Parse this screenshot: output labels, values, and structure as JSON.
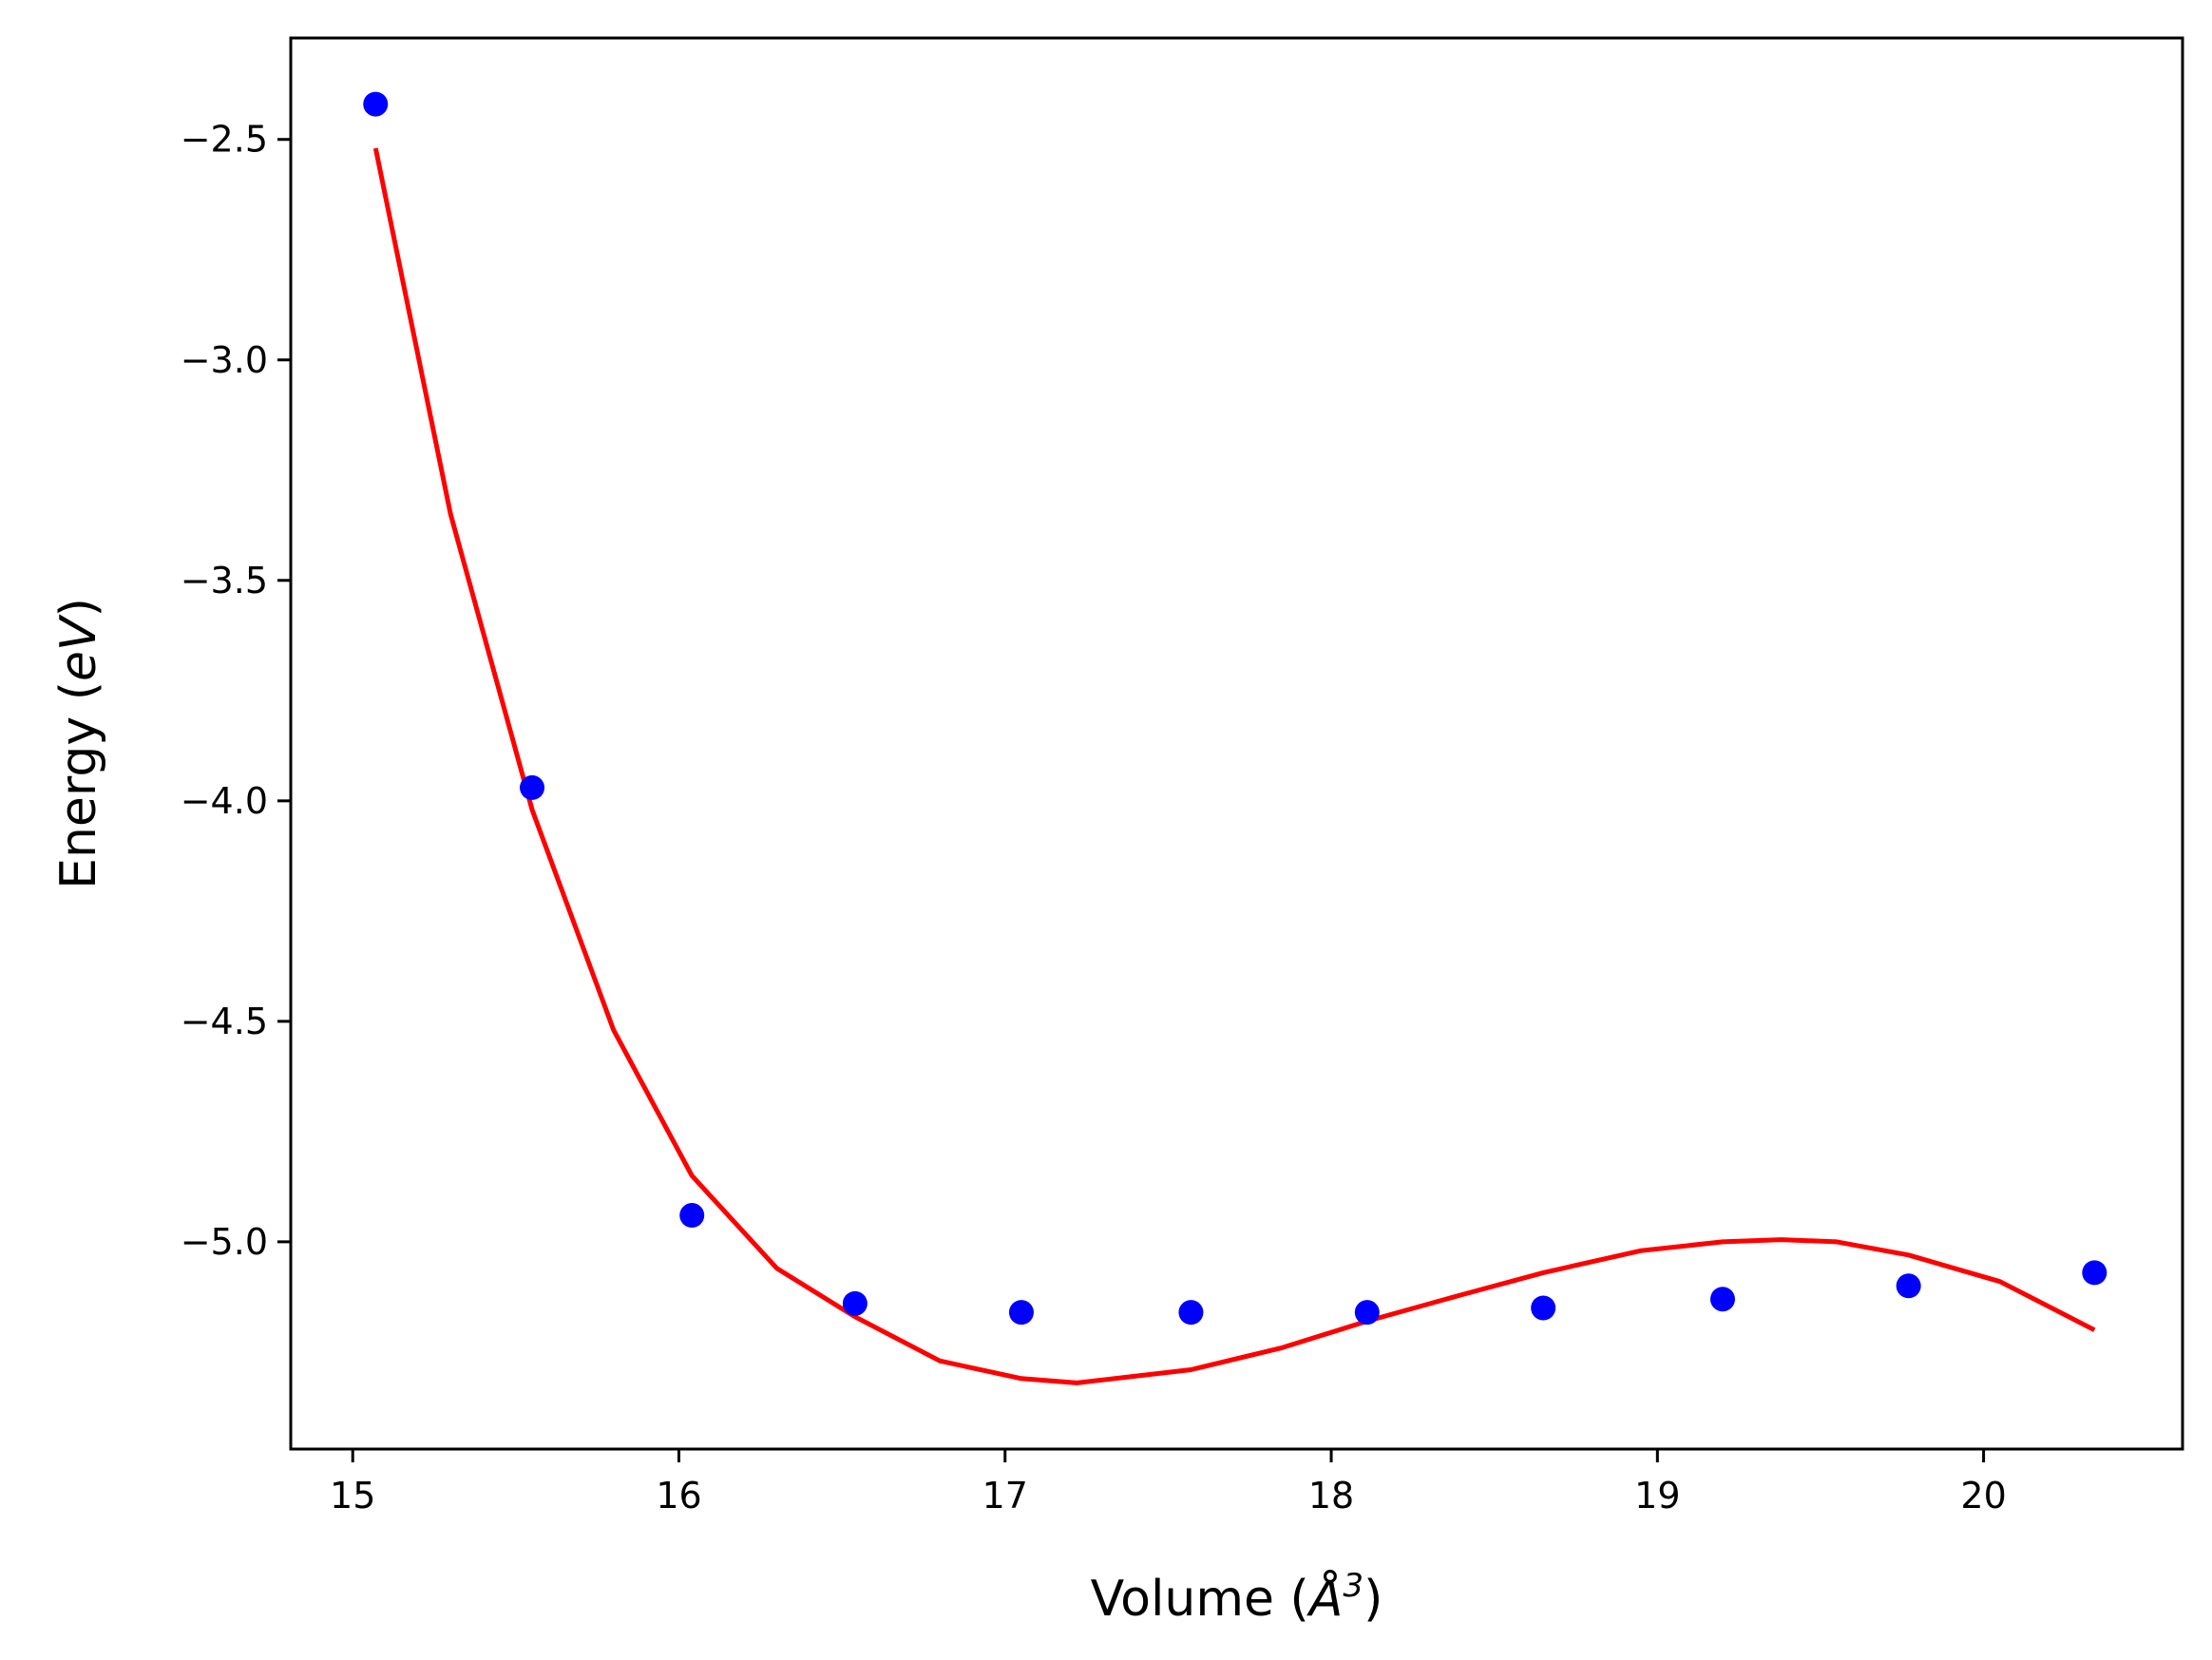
{
  "chart_data": {
    "type": "scatter",
    "title": "",
    "xlabel": "Volume (",
    "xlabel_symbol": "Å",
    "xlabel_exponent": "3",
    "xlabel_close": ")",
    "ylabel": "Energy (",
    "ylabel_unit": "eV",
    "ylabel_close": ")",
    "xlim": [
      14.81,
      20.61
    ],
    "ylim": [
      -5.47,
      -2.27
    ],
    "xticks": [
      15,
      16,
      17,
      18,
      19,
      20
    ],
    "xtick_labels": [
      "15",
      "16",
      "17",
      "18",
      "19",
      "20"
    ],
    "yticks": [
      -2.5,
      -3.0,
      -3.5,
      -4.0,
      -4.5,
      -5.0
    ],
    "ytick_labels": [
      "−2.5",
      "−3.0",
      "−3.5",
      "−4.0",
      "−4.5",
      "−5.0"
    ],
    "grid": false,
    "series": [
      {
        "kind": "points",
        "color": "#0000ff",
        "x": [
          15.07,
          15.55,
          16.04,
          16.54,
          17.05,
          17.57,
          18.11,
          18.65,
          19.2,
          19.77,
          20.34
        ],
        "y": [
          -2.42,
          -3.97,
          -4.94,
          -5.14,
          -5.16,
          -5.16,
          -5.16,
          -5.15,
          -5.13,
          -5.1,
          -5.07
        ]
      },
      {
        "kind": "curve",
        "color": "#ff0000",
        "x": [
          15.07,
          15.3,
          15.55,
          15.8,
          16.04,
          16.3,
          16.54,
          16.8,
          17.05,
          17.22,
          17.57,
          17.85,
          18.11,
          18.4,
          18.65,
          18.95,
          19.2,
          19.38,
          19.55,
          19.77,
          20.05,
          20.34
        ],
        "y": [
          -2.52,
          -3.35,
          -4.02,
          -4.52,
          -4.85,
          -5.06,
          -5.17,
          -5.27,
          -5.31,
          -5.32,
          -5.29,
          -5.24,
          -5.18,
          -5.12,
          -5.07,
          -5.02,
          -5.0,
          -4.995,
          -5.0,
          -5.03,
          -5.09,
          -5.2
        ]
      }
    ]
  }
}
